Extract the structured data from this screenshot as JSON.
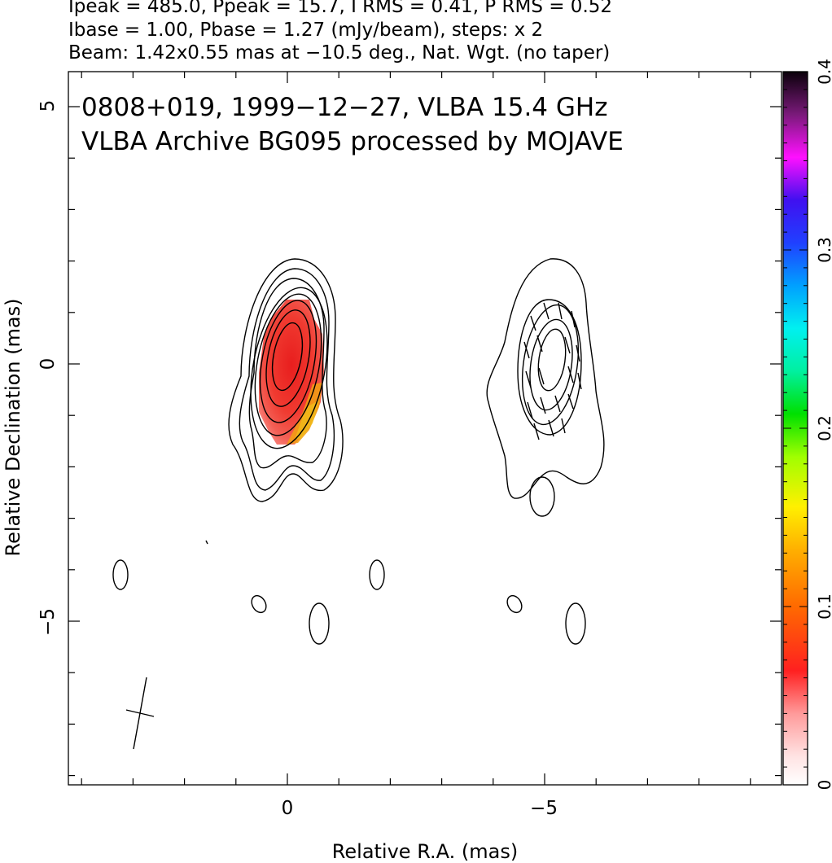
{
  "header": {
    "line1": "Ipeak = 485.0, Ppeak = 15.7, I RMS = 0.41, P RMS = 0.52",
    "line2": "Ibase = 1.00, Pbase = 1.27 (mJy/beam), steps: x 2",
    "line3": "Beam: 1.42x0.55 mas at −10.5 deg., Nat. Wgt. (no taper)"
  },
  "chart_data": {
    "type": "heatmap",
    "title_line1": "0808+019, 1999−12−27, VLBA 15.4 GHz",
    "title_line2": "VLBA Archive BG095 processed by MOJAVE",
    "xlabel": "Relative R.A. (mas)",
    "ylabel": "Relative Declination (mas)",
    "xlim": [
      4.3,
      -9.7
    ],
    "ylim": [
      -8.1,
      5.8
    ],
    "x_ticks": [
      {
        "value": 0,
        "label": "0"
      },
      {
        "value": -5,
        "label": "−5"
      }
    ],
    "y_ticks": [
      {
        "value": 5,
        "label": "5"
      },
      {
        "value": 0,
        "label": "0"
      },
      {
        "value": -5,
        "label": "−5"
      }
    ],
    "colorbar": {
      "range": [
        0,
        0.4
      ],
      "ticks": [
        {
          "value": 0,
          "label": "0"
        },
        {
          "value": 0.1,
          "label": "0.1"
        },
        {
          "value": 0.2,
          "label": "0.2"
        },
        {
          "value": 0.3,
          "label": "0.3"
        },
        {
          "value": 0.4,
          "label": "0.4"
        }
      ]
    },
    "sources": [
      {
        "name": "Stokes I contours, core",
        "x": -0.05,
        "y": -0.1,
        "contour_levels_mjy": [
          1,
          2,
          4,
          8,
          16,
          32,
          64,
          128,
          256
        ],
        "polarization": "red fill",
        "peak_mjy": 485.0
      },
      {
        "name": "Stokes I contours, secondary",
        "x": -5.0,
        "y": 0.0,
        "contour_levels_mjy": [
          1,
          2,
          4,
          8,
          16
        ],
        "polarization": "EVPA ticks"
      }
    ],
    "noise_islands": [
      {
        "x": 3.3,
        "y": -4.1
      },
      {
        "x": 0.6,
        "y": -4.65
      },
      {
        "x": -0.6,
        "y": -5.0
      },
      {
        "x": -1.75,
        "y": -4.1
      },
      {
        "x": -4.4,
        "y": -4.65
      },
      {
        "x": -5.55,
        "y": -5.0
      },
      {
        "x": -4.9,
        "y": -2.55
      }
    ],
    "beam": {
      "major_mas": 1.42,
      "minor_mas": 0.55,
      "pa_deg": -10.5,
      "position": "bottom-left"
    }
  }
}
